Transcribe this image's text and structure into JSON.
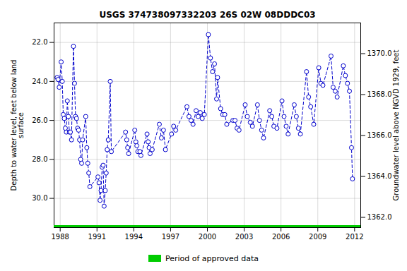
{
  "chart_data": {
    "type": "line",
    "title": "USGS 374738097332203 26S 02W 08DDDC03",
    "ylabel": "Depth to water level, feet below land\nsurface",
    "y2label": "Groundwater level above NGVD 1929, feet",
    "x": [
      1987.75,
      1987.83,
      1987.92,
      1988.08,
      1988.17,
      1988.25,
      1988.33,
      1988.42,
      1988.5,
      1988.58,
      1988.67,
      1988.75,
      1988.83,
      1988.92,
      1989.08,
      1989.17,
      1989.25,
      1989.33,
      1989.42,
      1989.5,
      1989.58,
      1989.67,
      1989.75,
      1989.83,
      1990.08,
      1990.17,
      1990.25,
      1990.33,
      1990.42,
      1991.08,
      1991.17,
      1991.25,
      1991.33,
      1991.42,
      1991.5,
      1991.58,
      1991.67,
      1991.75,
      1991.83,
      1991.92,
      1992.08,
      1992.17,
      1993.33,
      1993.42,
      1993.5,
      1993.58,
      1994.08,
      1994.17,
      1994.25,
      1994.33,
      1994.5,
      1994.58,
      1995.08,
      1995.17,
      1995.25,
      1995.33,
      1995.5,
      1996.08,
      1996.25,
      1996.42,
      1996.58,
      1997.08,
      1997.25,
      1997.42,
      1998.33,
      1998.5,
      1998.67,
      1998.83,
      1999.08,
      1999.25,
      1999.42,
      1999.58,
      1999.75,
      2000.08,
      2000.25,
      2000.42,
      2000.58,
      2000.75,
      2000.83,
      2001.08,
      2001.25,
      2001.42,
      2001.58,
      2002.08,
      2002.25,
      2002.42,
      2002.58,
      2003.08,
      2003.25,
      2003.5,
      2003.67,
      2004.08,
      2004.25,
      2004.42,
      2004.58,
      2005.08,
      2005.25,
      2005.42,
      2005.67,
      2006.08,
      2006.25,
      2006.42,
      2006.58,
      2007.08,
      2007.25,
      2007.42,
      2007.58,
      2008.08,
      2008.25,
      2008.42,
      2008.67,
      2009.08,
      2009.25,
      2009.42,
      2010.08,
      2010.25,
      2010.42,
      2010.58,
      2011.08,
      2011.25,
      2011.42,
      2011.58,
      2011.75,
      2011.83
    ],
    "series": [
      {
        "color": "#0000CC",
        "line_style": "dashed",
        "marker": "circle",
        "values": [
          23.8,
          23.9,
          24.3,
          23.0,
          24.0,
          25.7,
          25.9,
          26.4,
          26.6,
          25.0,
          25.8,
          26.6,
          26.6,
          27.0,
          22.2,
          24.1,
          25.8,
          25.9,
          26.4,
          26.5,
          27.0,
          28.0,
          28.2,
          27.0,
          25.8,
          27.4,
          28.2,
          28.7,
          29.4,
          28.9,
          29.2,
          30.1,
          29.6,
          28.4,
          28.3,
          30.4,
          29.6,
          28.7,
          27.5,
          27.0,
          24.0,
          27.6,
          26.6,
          27.0,
          27.4,
          27.7,
          26.5,
          27.1,
          27.3,
          27.6,
          27.6,
          27.8,
          26.7,
          27.1,
          27.4,
          27.7,
          27.5,
          26.2,
          26.9,
          26.5,
          27.5,
          26.7,
          26.3,
          26.5,
          25.3,
          25.8,
          26.0,
          26.2,
          25.5,
          25.8,
          25.6,
          25.9,
          25.7,
          21.6,
          22.8,
          23.5,
          23.1,
          24.9,
          23.8,
          25.4,
          25.7,
          25.7,
          26.2,
          26.0,
          26.0,
          26.4,
          26.5,
          25.2,
          25.8,
          26.1,
          26.3,
          25.2,
          26.0,
          26.5,
          26.9,
          25.5,
          25.8,
          26.3,
          26.4,
          25.0,
          25.8,
          26.3,
          26.7,
          25.2,
          25.8,
          26.4,
          26.7,
          23.5,
          24.8,
          25.3,
          26.2,
          23.3,
          24.1,
          24.2,
          22.7,
          24.3,
          24.5,
          24.8,
          23.2,
          23.7,
          24.1,
          24.5,
          27.4,
          29.0
        ]
      },
      {
        "name": "Period of approved data",
        "type": "band",
        "color": "#00CC00"
      }
    ],
    "xlim": [
      1987.5,
      2012.5
    ],
    "xticks": [
      1988,
      1991,
      1994,
      1997,
      2000,
      2003,
      2006,
      2009,
      2012
    ],
    "ylim": [
      31.5,
      21.0
    ],
    "yticks": [
      {
        "value": 22.0,
        "label": "22.0"
      },
      {
        "value": 24.0,
        "label": "24.0"
      },
      {
        "value": 26.0,
        "label": "26.0"
      },
      {
        "value": 28.0,
        "label": "28.0"
      },
      {
        "value": 30.0,
        "label": "30.0"
      }
    ],
    "y2lim": [
      1361.5,
      1371.5
    ],
    "y2ticks": [
      {
        "value": 1362.0,
        "label": "1362.0"
      },
      {
        "value": 1364.0,
        "label": "1364.0"
      },
      {
        "value": 1366.0,
        "label": "1366.0"
      },
      {
        "value": 1368.0,
        "label": "1368.0"
      },
      {
        "value": 1370.0,
        "label": "1370.0"
      }
    ],
    "grid": true,
    "legend": "bottom"
  }
}
